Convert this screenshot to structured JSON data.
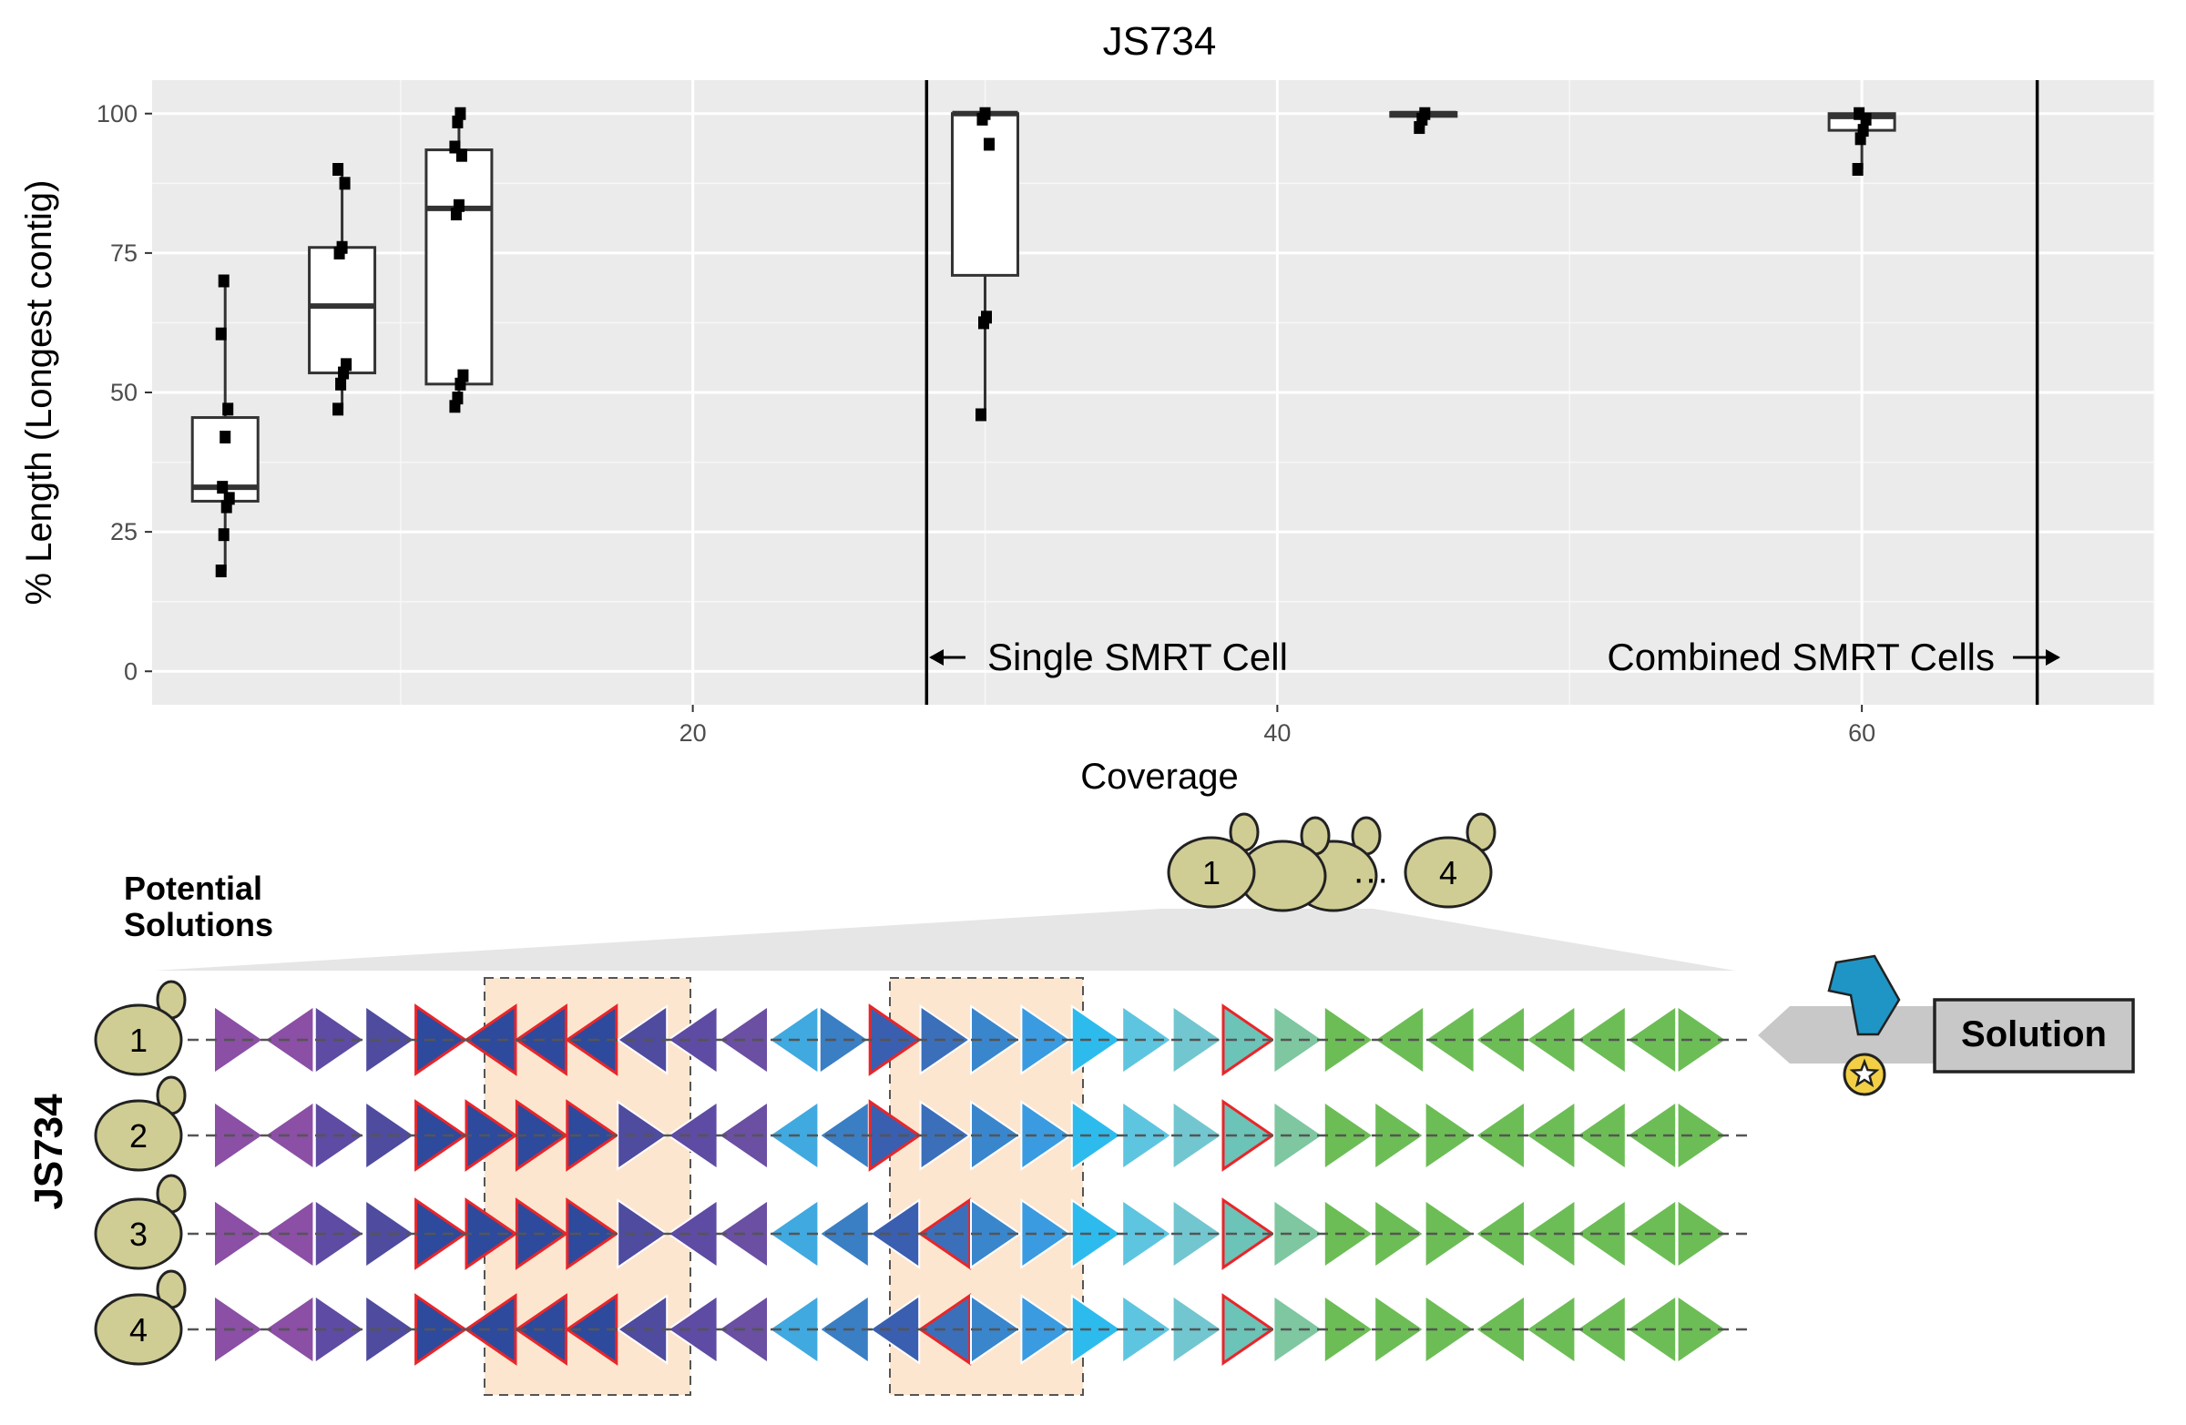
{
  "chart_data": {
    "type": "box",
    "title": "JS734",
    "xlabel": "Coverage",
    "ylabel": "% Length (Longest contig)",
    "xlim": [
      1.5,
      70
    ],
    "ylim": [
      -6,
      106
    ],
    "x_ticks": [
      20,
      40,
      60
    ],
    "y_ticks": [
      0,
      25,
      50,
      75,
      100
    ],
    "grid": true,
    "boxes": [
      {
        "x": 4,
        "q1": 30.5,
        "median": 33,
        "q3": 45.5,
        "whisker_low": 18,
        "whisker_high": 70,
        "points": [
          18,
          24.5,
          29.5,
          31,
          33,
          42,
          47,
          60.5,
          70
        ]
      },
      {
        "x": 8,
        "q1": 53.5,
        "median": 65.5,
        "q3": 76,
        "whisker_low": 47,
        "whisker_high": 90,
        "points": [
          47,
          51.5,
          53.5,
          55,
          75,
          76,
          87.5,
          90
        ]
      },
      {
        "x": 12,
        "q1": 51.5,
        "median": 83,
        "q3": 93.5,
        "whisker_low": 47.5,
        "whisker_high": 100,
        "points": [
          47.5,
          49,
          51.5,
          53,
          82,
          83.5,
          92.5,
          94,
          98.5,
          100
        ]
      },
      {
        "x": 30,
        "q1": 71,
        "median": 100,
        "q3": 100,
        "whisker_low": 46,
        "whisker_high": 100,
        "points": [
          46,
          62.5,
          63.5,
          94.5,
          99,
          100
        ]
      },
      {
        "x": 45,
        "q1": 99.5,
        "median": 100,
        "q3": 100.2,
        "whisker_low": 97.5,
        "whisker_high": 100.5,
        "points": [
          97.5,
          99,
          100
        ]
      },
      {
        "x": 60,
        "q1": 97,
        "median": 99.5,
        "q3": 100,
        "whisker_low": 90,
        "whisker_high": 100,
        "points": [
          90,
          95.5,
          97,
          99,
          100
        ]
      }
    ],
    "vlines": [
      28,
      66
    ],
    "annotations": {
      "single": "Single SMRT Cell",
      "combined": "Combined SMRT Cells"
    }
  },
  "diagram": {
    "section_label": "JS734",
    "potential_solutions": "Potential\nSolutions",
    "solution_label": "Solution",
    "ellipsis": "···",
    "yeast_first": "1",
    "yeast_last": "4",
    "rows": [
      "1",
      "2",
      "3",
      "4"
    ],
    "colors": [
      "#8b4fa5",
      "#8b4fa5",
      "#5e4ba3",
      "#4f4b9f",
      "#2e4a9c",
      "#2e4a9c",
      "#2e4a9c",
      "#2e4a9c",
      "#4f4b9f",
      "#5e4ba3",
      "#6a4fa3",
      "#3fa9e0",
      "#3a7ec4",
      "#3a5fb0",
      "#3c6fba",
      "#3a86cc",
      "#3b9be0",
      "#2dbbee",
      "#5ec5e0",
      "#72c6d0",
      "#6cc3b8",
      "#7ec7a0",
      "#6cbd55",
      "#6cbd55",
      "#6cbd55",
      "#6cbd55",
      "#6cbd55",
      "#6cbd55",
      "#6cbd55",
      "#6cbd55"
    ],
    "orientations": [
      [
        "r",
        "l",
        "r",
        "r",
        "r",
        "l",
        "l",
        "l",
        "l",
        "l",
        "l",
        "l",
        "r",
        "r",
        "r",
        "r",
        "r",
        "r",
        "r",
        "r",
        "r",
        "r",
        "r",
        "l",
        "l",
        "l",
        "l",
        "l",
        "l",
        "r"
      ],
      [
        "r",
        "l",
        "r",
        "r",
        "r",
        "r",
        "r",
        "r",
        "r",
        "l",
        "l",
        "l",
        "l",
        "r",
        "r",
        "r",
        "r",
        "r",
        "r",
        "r",
        "r",
        "r",
        "r",
        "r",
        "r",
        "l",
        "l",
        "l",
        "l",
        "r"
      ],
      [
        "r",
        "l",
        "r",
        "r",
        "r",
        "r",
        "r",
        "r",
        "r",
        "l",
        "l",
        "l",
        "l",
        "l",
        "l",
        "r",
        "r",
        "r",
        "r",
        "r",
        "r",
        "r",
        "r",
        "r",
        "r",
        "l",
        "l",
        "l",
        "l",
        "r"
      ],
      [
        "r",
        "l",
        "r",
        "r",
        "r",
        "l",
        "l",
        "l",
        "l",
        "l",
        "l",
        "l",
        "l",
        "l",
        "l",
        "r",
        "r",
        "r",
        "r",
        "r",
        "r",
        "r",
        "r",
        "r",
        "r",
        "l",
        "l",
        "l",
        "l",
        "r"
      ]
    ],
    "red_outlined": [
      [
        4,
        5,
        6,
        7,
        13,
        20
      ],
      [
        4,
        5,
        6,
        7,
        13,
        20
      ],
      [
        4,
        5,
        6,
        7,
        14,
        20
      ],
      [
        4,
        5,
        6,
        7,
        14,
        20
      ]
    ]
  }
}
